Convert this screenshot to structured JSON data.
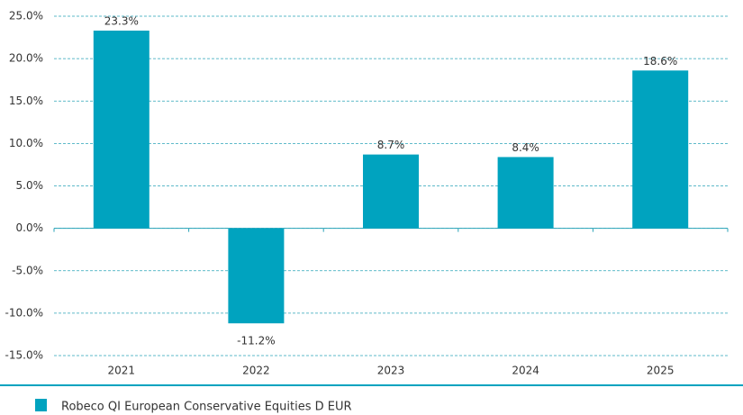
{
  "chart_data": {
    "type": "bar",
    "categories": [
      "2021",
      "2022",
      "2023",
      "2024",
      "2025"
    ],
    "series": [
      {
        "name": "Robeco QI European Conservative Equities D EUR",
        "color": "#00a3bf",
        "values": [
          23.3,
          -11.2,
          8.7,
          8.4,
          18.6
        ],
        "value_labels": [
          "23.3%",
          "-11.2%",
          "8.7%",
          "8.4%",
          "18.6%"
        ]
      }
    ],
    "ylim": [
      -15,
      25
    ],
    "yticks": [
      {
        "value": -15,
        "label": "-15.0%"
      },
      {
        "value": -10,
        "label": "-10.0%"
      },
      {
        "value": -5,
        "label": "-5.0%"
      },
      {
        "value": 0,
        "label": "0.0%"
      },
      {
        "value": 5,
        "label": "5.0%"
      },
      {
        "value": 10,
        "label": "10.0%"
      },
      {
        "value": 15,
        "label": "15.0%"
      },
      {
        "value": 20,
        "label": "20.0%"
      },
      {
        "value": 25,
        "label": "25.0%"
      }
    ],
    "grid": true,
    "legend": "bottom"
  }
}
